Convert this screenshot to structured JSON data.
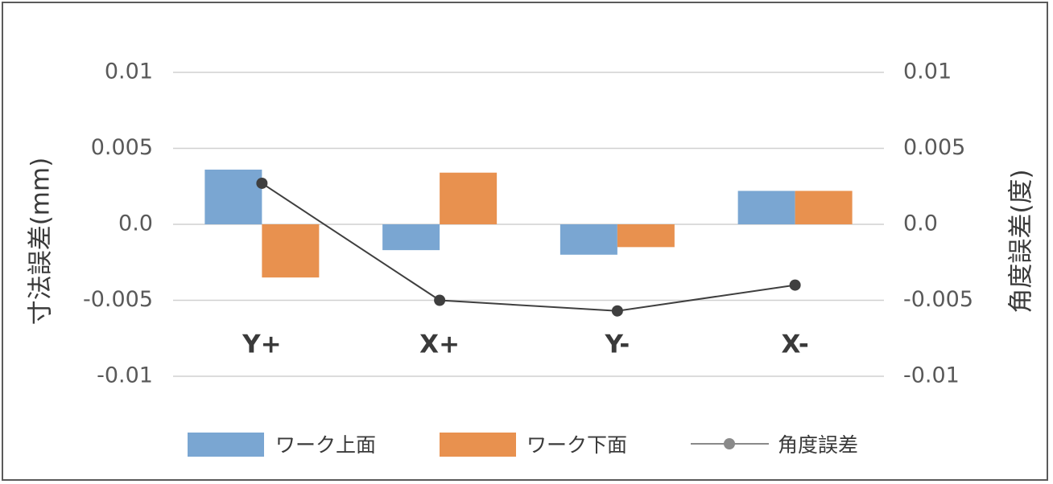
{
  "chart_data": {
    "type": "bar",
    "categories": [
      "Y+",
      "X+",
      "Y-",
      "X-"
    ],
    "series": [
      {
        "name": "ワーク上面",
        "kind": "bar",
        "axis": "left",
        "color": "#7aa6d2",
        "values": [
          0.0036,
          -0.0017,
          -0.002,
          0.0022
        ]
      },
      {
        "name": "ワーク下面",
        "kind": "bar",
        "axis": "left",
        "color": "#e8914f",
        "values": [
          -0.0035,
          0.0034,
          -0.0015,
          0.0022
        ]
      },
      {
        "name": "角度誤差",
        "kind": "line",
        "axis": "right",
        "color": "#3f3f3f",
        "values": [
          0.0027,
          -0.005,
          -0.0057,
          -0.004
        ]
      }
    ],
    "ylabel": "寸法誤差(mm)",
    "y2label": "角度誤差(度)",
    "ylim": [
      -0.01,
      0.01
    ],
    "y2lim": [
      -0.01,
      0.01
    ],
    "yticks": [
      "0.01",
      "0.005",
      "0.0",
      "-0.005",
      "-0.01"
    ],
    "y2ticks": [
      "0.01",
      "0.005",
      "0.0",
      "-0.005",
      "-0.01"
    ],
    "grid": true,
    "legend_position": "bottom"
  }
}
